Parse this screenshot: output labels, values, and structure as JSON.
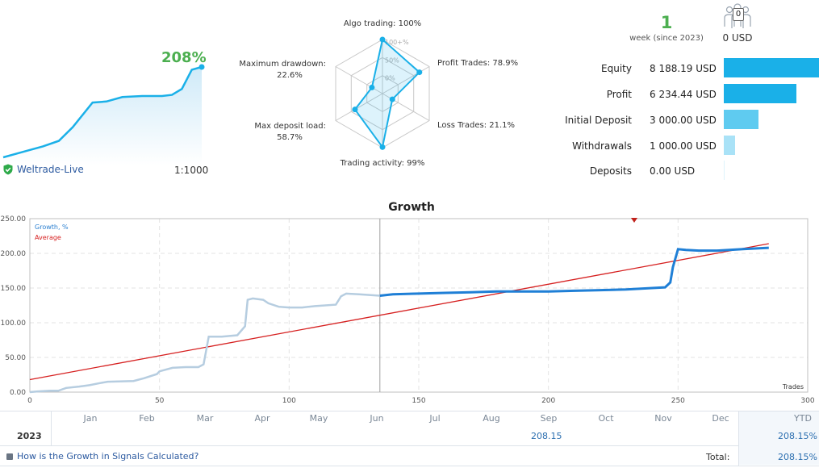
{
  "summary": {
    "growth_badge": "208%",
    "broker": "Weltrade-Live",
    "leverage": "1:1000",
    "weeks_value": "1",
    "weeks_label": "week (since 2023)",
    "subscribers_count": "0",
    "subscribers_funds": "0 USD"
  },
  "colors": {
    "accent": "#1ab0e8",
    "growth_green": "#4caf50",
    "average_red": "#d62020",
    "history_line": "#b6cde0"
  },
  "radar": {
    "rings": [
      "100+%",
      "50%",
      "0%"
    ],
    "axes": [
      {
        "label": "Algo trading:",
        "value_text": "100%",
        "value": 100
      },
      {
        "label": "Profit Trades:",
        "value_text": "78.9%",
        "value": 78.9
      },
      {
        "label": "Loss Trades:",
        "value_text": "21.1%",
        "value": 21.1
      },
      {
        "label": "Trading activity:",
        "value_text": "99%",
        "value": 99
      },
      {
        "label": "Max deposit load:",
        "value_text": "58.7%",
        "value": 58.7
      },
      {
        "label": "Maximum drawdown:",
        "value_text": "22.6%",
        "value": 22.6
      }
    ]
  },
  "stats": [
    {
      "label": "Equity",
      "value": "8 188.19 USD",
      "amount": 8188.19,
      "color": "#1ab0e8"
    },
    {
      "label": "Profit",
      "value": "6 234.44 USD",
      "amount": 6234.44,
      "color": "#1ab0e8"
    },
    {
      "label": "Initial Deposit",
      "value": "3 000.00 USD",
      "amount": 3000,
      "color": "#5fcbf0"
    },
    {
      "label": "Withdrawals",
      "value": "1 000.00 USD",
      "amount": 1000,
      "color": "#a9e2f7"
    },
    {
      "label": "Deposits",
      "value": "0.00 USD",
      "amount": 0,
      "color": "#dff3fb"
    }
  ],
  "chart_data": {
    "type": "line",
    "title": "Growth",
    "xlabel": "Trades",
    "xlim": [
      0,
      300
    ],
    "ylim": [
      0,
      250
    ],
    "x_ticks": [
      0,
      50,
      100,
      150,
      200,
      250,
      300
    ],
    "y_ticks": [
      "0.00",
      "50.00",
      "100.00",
      "150.00",
      "200.00",
      "250.00"
    ],
    "grid": true,
    "legend": [
      "Growth, %",
      "Average"
    ],
    "legend_position": "top-left",
    "series": [
      {
        "name": "Growth, %",
        "x": [
          0,
          3,
          8,
          11,
          14,
          19,
          23,
          27,
          30,
          40,
          41,
          44,
          49,
          50,
          55,
          60,
          65,
          67,
          69,
          74,
          80,
          83,
          84,
          86,
          90,
          92,
          96,
          100,
          105,
          110,
          118,
          120,
          122,
          127,
          131,
          135
        ],
        "y": [
          0,
          1,
          2,
          2,
          6,
          8,
          10,
          13,
          15,
          16,
          17,
          20,
          26,
          30,
          35,
          36,
          36,
          40,
          80,
          80,
          82,
          95,
          133,
          135,
          133,
          128,
          123,
          122,
          122,
          124,
          126,
          138,
          142,
          141,
          140,
          139
        ]
      },
      {
        "name": "Growth, %",
        "x": [
          135,
          140,
          150,
          160,
          170,
          180,
          190,
          200,
          210,
          220,
          230,
          240,
          245,
          247,
          248,
          250,
          253,
          258,
          265,
          275,
          285
        ],
        "y": [
          139,
          141,
          142,
          143,
          144,
          145,
          145,
          145,
          146,
          147,
          148,
          150,
          151,
          158,
          180,
          206,
          205,
          204,
          204,
          206,
          208
        ]
      },
      {
        "name": "Average",
        "x": [
          0,
          285
        ],
        "y": [
          18,
          214
        ]
      }
    ],
    "divider_x": 135
  },
  "spark": {
    "x": [
      0,
      10,
      20,
      28,
      35,
      45,
      52,
      60,
      70,
      80,
      85,
      90,
      95,
      100
    ],
    "y": [
      0,
      10,
      20,
      30,
      55,
      100,
      102,
      110,
      112,
      112,
      114,
      125,
      160,
      165
    ]
  },
  "table": {
    "months": [
      "Jan",
      "Feb",
      "Mar",
      "Apr",
      "May",
      "Jun",
      "Jul",
      "Aug",
      "Sep",
      "Oct",
      "Nov",
      "Dec"
    ],
    "ytd_label": "YTD",
    "year": "2023",
    "sep_value": "208.15",
    "ytd_value": "208.15%",
    "total_label": "Total:",
    "total_value": "208.15%",
    "help_link": "How is the Growth in Signals Calculated?"
  }
}
